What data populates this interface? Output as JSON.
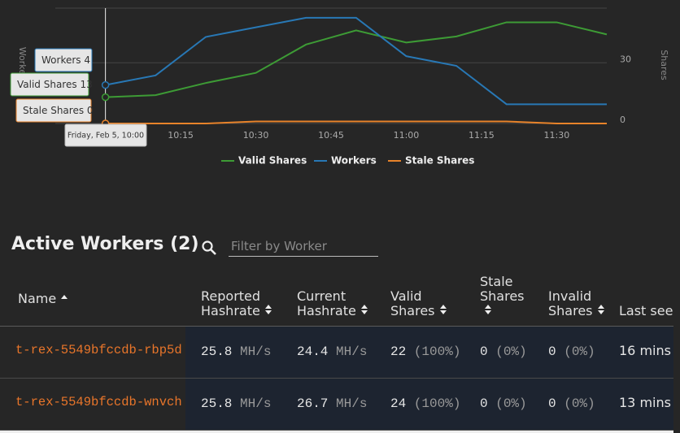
{
  "chart_data": {
    "type": "line",
    "x": [
      "10:00",
      "10:10",
      "10:20",
      "10:30",
      "10:40",
      "10:50",
      "11:00",
      "11:10",
      "11:20",
      "11:30",
      "11:40"
    ],
    "xlim": [
      "09:50",
      "11:40"
    ],
    "xticks": [
      "10:15",
      "10:30",
      "10:45",
      "11:00",
      "11:15",
      "11:30"
    ],
    "ylabel": "Workers",
    "y2label": "Shares",
    "ylim": [
      0,
      12
    ],
    "y2lim": [
      0,
      57
    ],
    "y2ticks": [
      0,
      30
    ],
    "grid": true,
    "series": [
      {
        "name": "Valid Shares",
        "color": "#3d9b35",
        "axis": "y2",
        "values": [
          13,
          14,
          20,
          25,
          39,
          46,
          40,
          43,
          50,
          50,
          44
        ]
      },
      {
        "name": "Workers",
        "color": "#2878b5",
        "values": [
          4,
          5,
          9,
          10,
          11,
          11,
          7,
          6,
          2,
          2,
          2
        ]
      },
      {
        "name": "Stale Shares",
        "color": "#e8832a",
        "axis": "y2",
        "values": [
          0,
          0,
          0,
          1,
          1,
          1,
          1,
          1,
          1,
          0,
          0
        ]
      }
    ],
    "tooltip_date": "Friday, Feb 5, 10:00"
  },
  "workers": {
    "title": "Active Workers",
    "count": "(2)",
    "filter_placeholder": "Filter by Worker",
    "columns": [
      "Name",
      "Reported Hashrate",
      "Current Hashrate",
      "Valid Shares",
      "Stale Shares",
      "Invalid Shares",
      "Last seen"
    ],
    "rows": [
      [
        "t-rex-5549bfccdb-rbp5d",
        [
          25.8,
          "MH/s"
        ],
        [
          24.4,
          "MH/s"
        ],
        [
          22,
          "(100%)"
        ],
        [
          0,
          "(0%)"
        ],
        [
          0,
          "(0%)"
        ],
        "16 mins"
      ],
      [
        "t-rex-5549bfccdb-wnvch",
        [
          25.8,
          "MH/s"
        ],
        [
          26.7,
          "MH/s"
        ],
        [
          24,
          "(100%)"
        ],
        [
          0,
          "(0%)"
        ],
        [
          0,
          "(0%)"
        ],
        "13 mins"
      ]
    ]
  }
}
